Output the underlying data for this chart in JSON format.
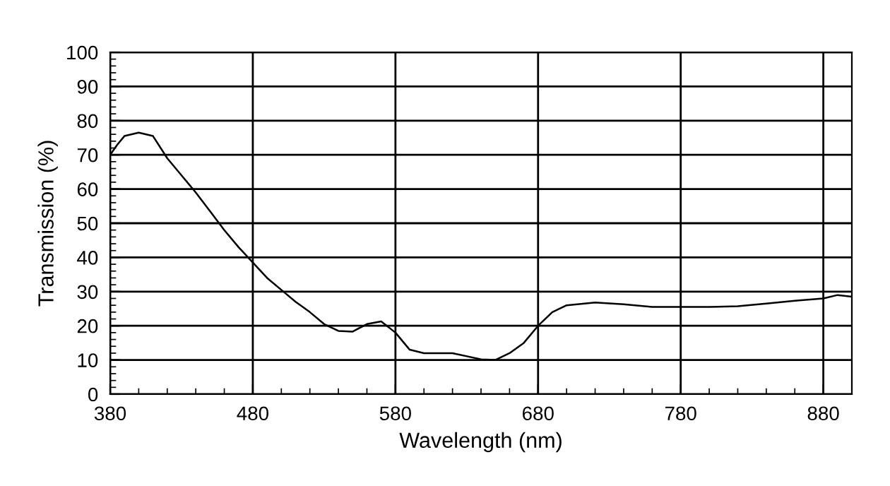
{
  "chart_data": {
    "type": "line",
    "xlabel": "Wavelength (nm)",
    "ylabel": "Transmission (%)",
    "x": [
      380,
      385,
      390,
      400,
      410,
      420,
      430,
      440,
      450,
      460,
      470,
      480,
      490,
      500,
      510,
      520,
      530,
      540,
      550,
      560,
      570,
      580,
      590,
      600,
      620,
      640,
      650,
      660,
      670,
      680,
      690,
      700,
      720,
      740,
      760,
      780,
      800,
      820,
      840,
      860,
      880,
      890,
      900
    ],
    "series": [
      {
        "color": "#000000",
        "values": [
          70,
          73,
          75.5,
          76.5,
          75.5,
          69,
          64,
          59,
          53.5,
          48,
          43,
          38.5,
          34,
          30.5,
          27,
          24,
          20.5,
          18.5,
          18.3,
          20.5,
          21.3,
          18,
          13,
          12,
          12,
          10.2,
          10,
          12,
          15,
          20,
          24,
          26,
          26.8,
          26.3,
          25.5,
          25.5,
          25.5,
          25.7,
          26.5,
          27.3,
          28,
          29,
          28.5
        ]
      }
    ],
    "xlim": [
      380,
      900
    ],
    "ylim": [
      0,
      100
    ],
    "xticks": [
      380,
      480,
      580,
      680,
      780,
      880
    ],
    "yticks": [
      0,
      10,
      20,
      30,
      40,
      50,
      60,
      70,
      80,
      90,
      100
    ],
    "grid": true,
    "legend": false,
    "marker": "none",
    "line_style": "solid"
  }
}
